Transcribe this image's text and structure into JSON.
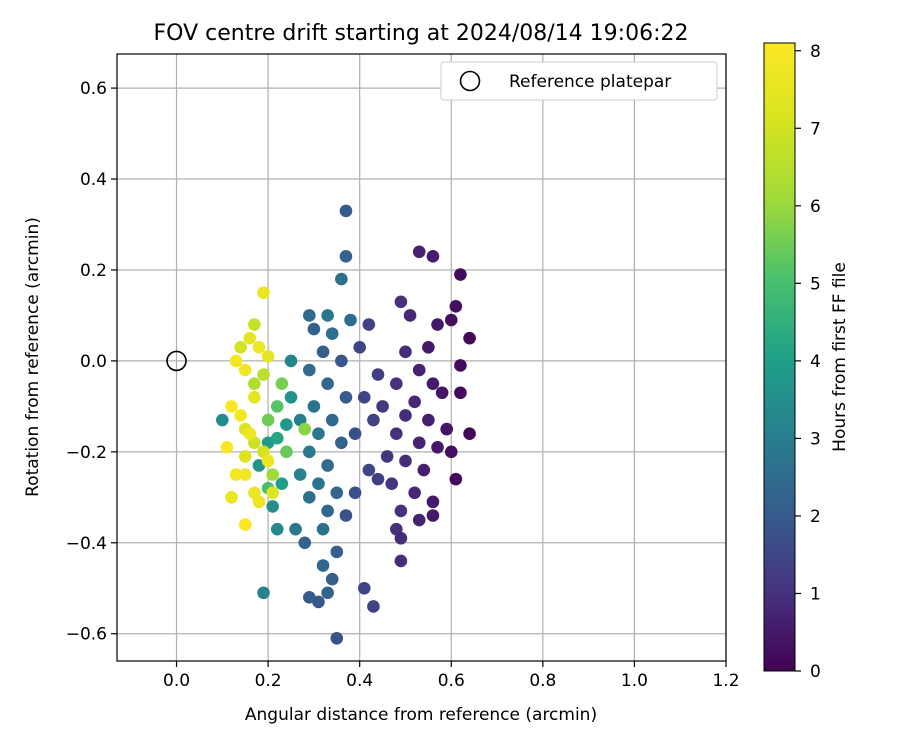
{
  "chart_data": {
    "type": "scatter",
    "title": "FOV centre drift starting at 2024/08/14 19:06:22",
    "xlabel": "Angular distance from reference (arcmin)",
    "ylabel": "Rotation from reference (arcmin)",
    "xlim": [
      -0.13,
      1.2
    ],
    "ylim": [
      -0.66,
      0.675
    ],
    "xticks": [
      0.0,
      0.2,
      0.4,
      0.6,
      0.8,
      1.0,
      1.2
    ],
    "xtick_labels": [
      "0.0",
      "0.2",
      "0.4",
      "0.6",
      "0.8",
      "1.0",
      "1.2"
    ],
    "yticks": [
      -0.6,
      -0.4,
      -0.2,
      0.0,
      0.2,
      0.4,
      0.6
    ],
    "ytick_labels": [
      "−0.6",
      "−0.4",
      "−0.2",
      "0.0",
      "0.2",
      "0.4",
      "0.6"
    ],
    "grid": true,
    "legend": {
      "location": "upper-right",
      "entries": [
        "Reference platepar"
      ]
    },
    "reference_point": {
      "x": 0.0,
      "y": 0.0,
      "label": "Reference platepar"
    },
    "colorbar": {
      "label": "Hours from first FF file",
      "colormap": "viridis",
      "range": [
        0,
        8.1
      ],
      "ticks": [
        0,
        1,
        2,
        3,
        4,
        5,
        6,
        7,
        8
      ],
      "tick_labels": [
        "0",
        "1",
        "2",
        "3",
        "4",
        "5",
        "6",
        "7",
        "8"
      ]
    },
    "series": [
      {
        "values": [
          {
            "x": 0.53,
            "y": 0.24,
            "h": 0.7
          },
          {
            "x": 0.56,
            "y": 0.23,
            "h": 0.6
          },
          {
            "x": 0.62,
            "y": 0.19,
            "h": 0.2
          },
          {
            "x": 0.49,
            "y": 0.13,
            "h": 1.0
          },
          {
            "x": 0.61,
            "y": 0.12,
            "h": 0.3
          },
          {
            "x": 0.51,
            "y": 0.1,
            "h": 0.8
          },
          {
            "x": 0.57,
            "y": 0.08,
            "h": 0.5
          },
          {
            "x": 0.6,
            "y": 0.09,
            "h": 0.3
          },
          {
            "x": 0.64,
            "y": 0.05,
            "h": 0.1
          },
          {
            "x": 0.55,
            "y": 0.03,
            "h": 0.5
          },
          {
            "x": 0.5,
            "y": 0.02,
            "h": 0.9
          },
          {
            "x": 0.53,
            "y": -0.02,
            "h": 0.7
          },
          {
            "x": 0.48,
            "y": -0.05,
            "h": 1.0
          },
          {
            "x": 0.56,
            "y": -0.05,
            "h": 0.5
          },
          {
            "x": 0.62,
            "y": -0.01,
            "h": 0.2
          },
          {
            "x": 0.58,
            "y": -0.07,
            "h": 0.4
          },
          {
            "x": 0.62,
            "y": -0.07,
            "h": 0.2
          },
          {
            "x": 0.52,
            "y": -0.09,
            "h": 0.8
          },
          {
            "x": 0.45,
            "y": -0.1,
            "h": 1.2
          },
          {
            "x": 0.5,
            "y": -0.12,
            "h": 0.9
          },
          {
            "x": 0.55,
            "y": -0.13,
            "h": 0.6
          },
          {
            "x": 0.59,
            "y": -0.15,
            "h": 0.4
          },
          {
            "x": 0.64,
            "y": -0.16,
            "h": 0.1
          },
          {
            "x": 0.48,
            "y": -0.16,
            "h": 1.0
          },
          {
            "x": 0.53,
            "y": -0.18,
            "h": 0.7
          },
          {
            "x": 0.57,
            "y": -0.19,
            "h": 0.5
          },
          {
            "x": 0.6,
            "y": -0.2,
            "h": 0.3
          },
          {
            "x": 0.46,
            "y": -0.21,
            "h": 1.1
          },
          {
            "x": 0.5,
            "y": -0.22,
            "h": 0.9
          },
          {
            "x": 0.54,
            "y": -0.24,
            "h": 0.6
          },
          {
            "x": 0.61,
            "y": -0.26,
            "h": 0.2
          },
          {
            "x": 0.47,
            "y": -0.27,
            "h": 1.1
          },
          {
            "x": 0.52,
            "y": -0.29,
            "h": 0.8
          },
          {
            "x": 0.56,
            "y": -0.31,
            "h": 0.5
          },
          {
            "x": 0.49,
            "y": -0.33,
            "h": 1.0
          },
          {
            "x": 0.53,
            "y": -0.35,
            "h": 0.7
          },
          {
            "x": 0.56,
            "y": -0.34,
            "h": 0.5
          },
          {
            "x": 0.48,
            "y": -0.37,
            "h": 1.0
          },
          {
            "x": 0.49,
            "y": -0.39,
            "h": 0.9
          },
          {
            "x": 0.49,
            "y": -0.44,
            "h": 0.9
          },
          {
            "x": 0.4,
            "y": 0.03,
            "h": 1.5
          },
          {
            "x": 0.42,
            "y": 0.08,
            "h": 1.4
          },
          {
            "x": 0.44,
            "y": -0.03,
            "h": 1.3
          },
          {
            "x": 0.41,
            "y": -0.08,
            "h": 1.5
          },
          {
            "x": 0.43,
            "y": -0.13,
            "h": 1.4
          },
          {
            "x": 0.39,
            "y": -0.16,
            "h": 1.7
          },
          {
            "x": 0.42,
            "y": -0.24,
            "h": 1.5
          },
          {
            "x": 0.39,
            "y": -0.29,
            "h": 1.7
          },
          {
            "x": 0.44,
            "y": -0.26,
            "h": 1.3
          },
          {
            "x": 0.37,
            "y": -0.34,
            "h": 1.8
          },
          {
            "x": 0.41,
            "y": -0.5,
            "h": 1.5
          },
          {
            "x": 0.43,
            "y": -0.54,
            "h": 1.4
          },
          {
            "x": 0.37,
            "y": 0.33,
            "h": 2.0
          },
          {
            "x": 0.37,
            "y": 0.23,
            "h": 2.2
          },
          {
            "x": 0.36,
            "y": 0.18,
            "h": 2.6
          },
          {
            "x": 0.29,
            "y": 0.1,
            "h": 2.4
          },
          {
            "x": 0.33,
            "y": 0.1,
            "h": 2.8
          },
          {
            "x": 0.38,
            "y": 0.09,
            "h": 2.5
          },
          {
            "x": 0.3,
            "y": 0.07,
            "h": 2.2
          },
          {
            "x": 0.34,
            "y": 0.06,
            "h": 2.6
          },
          {
            "x": 0.32,
            "y": 0.02,
            "h": 2.1
          },
          {
            "x": 0.36,
            "y": 0.0,
            "h": 1.9
          },
          {
            "x": 0.29,
            "y": -0.02,
            "h": 2.5
          },
          {
            "x": 0.33,
            "y": -0.05,
            "h": 2.3
          },
          {
            "x": 0.37,
            "y": -0.08,
            "h": 2.0
          },
          {
            "x": 0.3,
            "y": -0.1,
            "h": 2.7
          },
          {
            "x": 0.34,
            "y": -0.13,
            "h": 2.4
          },
          {
            "x": 0.27,
            "y": -0.13,
            "h": 3.0
          },
          {
            "x": 0.31,
            "y": -0.16,
            "h": 2.8
          },
          {
            "x": 0.36,
            "y": -0.18,
            "h": 2.2
          },
          {
            "x": 0.29,
            "y": -0.2,
            "h": 2.9
          },
          {
            "x": 0.33,
            "y": -0.23,
            "h": 2.5
          },
          {
            "x": 0.27,
            "y": -0.25,
            "h": 3.1
          },
          {
            "x": 0.31,
            "y": -0.27,
            "h": 2.7
          },
          {
            "x": 0.35,
            "y": -0.29,
            "h": 2.3
          },
          {
            "x": 0.29,
            "y": -0.3,
            "h": 2.6
          },
          {
            "x": 0.33,
            "y": -0.33,
            "h": 2.4
          },
          {
            "x": 0.26,
            "y": -0.37,
            "h": 2.9
          },
          {
            "x": 0.32,
            "y": -0.37,
            "h": 2.6
          },
          {
            "x": 0.28,
            "y": -0.4,
            "h": 2.2
          },
          {
            "x": 0.35,
            "y": -0.42,
            "h": 2.1
          },
          {
            "x": 0.32,
            "y": -0.45,
            "h": 2.3
          },
          {
            "x": 0.34,
            "y": -0.48,
            "h": 2.1
          },
          {
            "x": 0.29,
            "y": -0.52,
            "h": 2.0
          },
          {
            "x": 0.31,
            "y": -0.53,
            "h": 1.9
          },
          {
            "x": 0.33,
            "y": -0.51,
            "h": 2.2
          },
          {
            "x": 0.35,
            "y": -0.61,
            "h": 1.8
          },
          {
            "x": 0.25,
            "y": 0.0,
            "h": 3.2
          },
          {
            "x": 0.25,
            "y": -0.08,
            "h": 3.6
          },
          {
            "x": 0.24,
            "y": -0.14,
            "h": 3.8
          },
          {
            "x": 0.22,
            "y": -0.17,
            "h": 4.2
          },
          {
            "x": 0.2,
            "y": -0.18,
            "h": 3.9
          },
          {
            "x": 0.23,
            "y": -0.27,
            "h": 4.0
          },
          {
            "x": 0.21,
            "y": -0.32,
            "h": 3.5
          },
          {
            "x": 0.22,
            "y": -0.37,
            "h": 3.3
          },
          {
            "x": 0.1,
            "y": -0.13,
            "h": 3.4
          },
          {
            "x": 0.19,
            "y": -0.51,
            "h": 3.1
          },
          {
            "x": 0.2,
            "y": -0.28,
            "h": 5.0
          },
          {
            "x": 0.18,
            "y": -0.23,
            "h": 3.7
          },
          {
            "x": 0.23,
            "y": -0.05,
            "h": 5.6
          },
          {
            "x": 0.22,
            "y": -0.1,
            "h": 5.2
          },
          {
            "x": 0.2,
            "y": -0.13,
            "h": 5.5
          },
          {
            "x": 0.24,
            "y": -0.2,
            "h": 5.4
          },
          {
            "x": 0.28,
            "y": -0.15,
            "h": 5.8
          },
          {
            "x": 0.21,
            "y": -0.25,
            "h": 6.1
          },
          {
            "x": 0.17,
            "y": -0.05,
            "h": 6.4
          },
          {
            "x": 0.19,
            "y": -0.03,
            "h": 6.6
          },
          {
            "x": 0.17,
            "y": 0.08,
            "h": 6.8
          },
          {
            "x": 0.14,
            "y": 0.03,
            "h": 7.0
          },
          {
            "x": 0.15,
            "y": -0.15,
            "h": 7.2
          },
          {
            "x": 0.17,
            "y": -0.18,
            "h": 6.9
          },
          {
            "x": 0.19,
            "y": -0.2,
            "h": 7.1
          },
          {
            "x": 0.15,
            "y": -0.21,
            "h": 7.3
          },
          {
            "x": 0.19,
            "y": 0.15,
            "h": 7.6
          },
          {
            "x": 0.16,
            "y": 0.05,
            "h": 7.4
          },
          {
            "x": 0.18,
            "y": 0.03,
            "h": 7.7
          },
          {
            "x": 0.2,
            "y": 0.01,
            "h": 7.5
          },
          {
            "x": 0.13,
            "y": 0.0,
            "h": 7.9
          },
          {
            "x": 0.15,
            "y": -0.02,
            "h": 7.8
          },
          {
            "x": 0.17,
            "y": -0.08,
            "h": 7.5
          },
          {
            "x": 0.12,
            "y": -0.1,
            "h": 8.0
          },
          {
            "x": 0.14,
            "y": -0.12,
            "h": 7.9
          },
          {
            "x": 0.16,
            "y": -0.16,
            "h": 7.7
          },
          {
            "x": 0.11,
            "y": -0.19,
            "h": 8.0
          },
          {
            "x": 0.13,
            "y": -0.25,
            "h": 7.9
          },
          {
            "x": 0.15,
            "y": -0.25,
            "h": 7.8
          },
          {
            "x": 0.17,
            "y": -0.29,
            "h": 7.6
          },
          {
            "x": 0.12,
            "y": -0.3,
            "h": 7.6
          },
          {
            "x": 0.18,
            "y": -0.31,
            "h": 7.7
          },
          {
            "x": 0.2,
            "y": -0.22,
            "h": 7.6
          },
          {
            "x": 0.15,
            "y": -0.36,
            "h": 8.0
          },
          {
            "x": 0.21,
            "y": -0.29,
            "h": 7.3
          }
        ]
      }
    ]
  }
}
